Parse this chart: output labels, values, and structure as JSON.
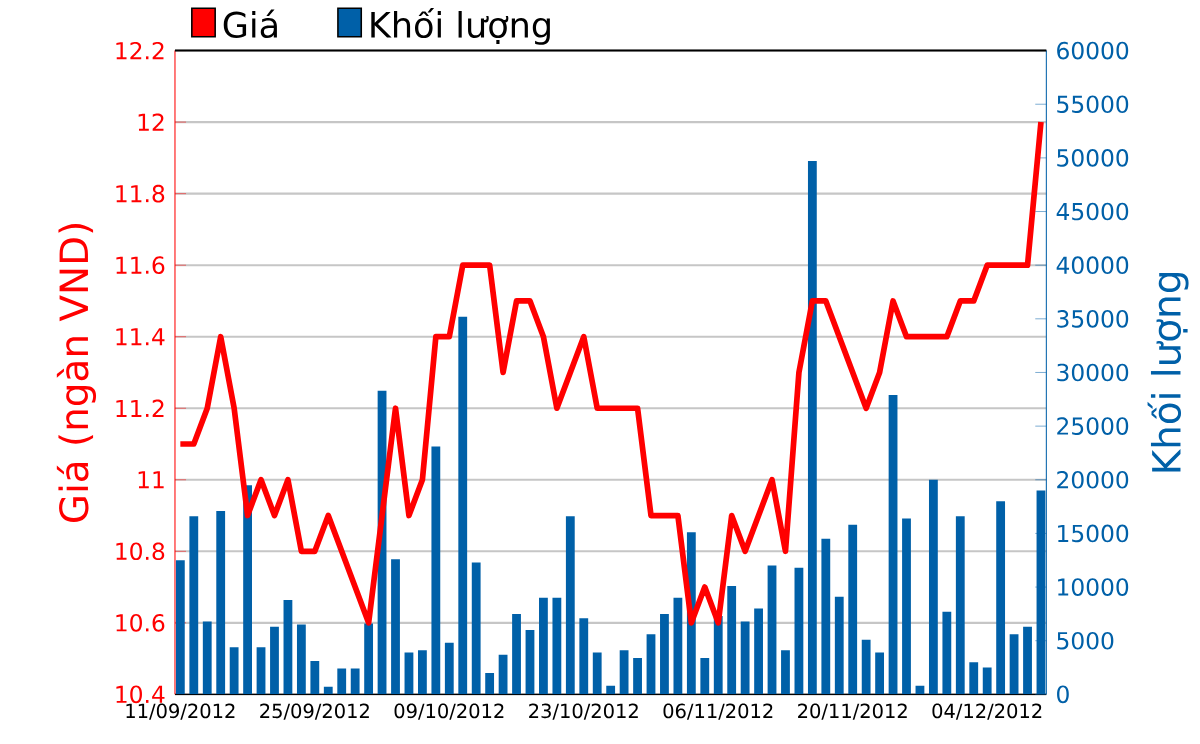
{
  "chart_data": {
    "type": "bar",
    "categories": [
      "11/09/2012",
      null,
      null,
      null,
      null,
      null,
      null,
      null,
      null,
      null,
      "25/09/2012",
      null,
      null,
      null,
      null,
      null,
      null,
      null,
      null,
      null,
      "09/10/2012",
      null,
      null,
      null,
      null,
      null,
      null,
      null,
      null,
      null,
      "23/10/2012",
      null,
      null,
      null,
      null,
      null,
      null,
      null,
      null,
      null,
      "06/11/2012",
      null,
      null,
      null,
      null,
      null,
      null,
      null,
      null,
      null,
      "20/11/2012",
      null,
      null,
      null,
      null,
      null,
      null,
      null,
      null,
      null,
      "04/12/2012",
      null,
      null,
      null,
      null
    ],
    "ylabel": "Giá (ngàn VND)",
    "y2label": "Khối lượng",
    "ylim": [
      10.4,
      12.2
    ],
    "yticks": [
      10.4,
      10.6,
      10.8,
      11,
      11.2,
      11.4,
      11.6,
      11.8,
      12,
      12.2
    ],
    "y2lim": [
      0,
      60000
    ],
    "y2ticks": [
      0,
      5000,
      10000,
      15000,
      20000,
      25000,
      30000,
      35000,
      40000,
      45000,
      50000,
      55000,
      60000
    ],
    "grid": "y",
    "legend": "top left",
    "series": [
      {
        "name": "Khối lượng",
        "axis": "y2",
        "color": "#0060a8",
        "values": [
          12500,
          16600,
          6800,
          17100,
          4400,
          19500,
          4400,
          6300,
          8800,
          6500,
          3100,
          700,
          2400,
          2400,
          6600,
          28300,
          12600,
          3900,
          4100,
          23100,
          4800,
          35200,
          12300,
          2000,
          3700,
          7500,
          6000,
          9000,
          9000,
          16600,
          7100,
          3900,
          800,
          4100,
          3400,
          5600,
          7500,
          9000,
          15100,
          3400,
          7300,
          10100,
          6800,
          8000,
          12000,
          4100,
          11800,
          49700,
          14500,
          9100,
          15800,
          5100,
          3900,
          27900,
          16400,
          800,
          20000,
          7700,
          16600,
          3000,
          2500,
          18000,
          5600,
          6300,
          19000
        ]
      },
      {
        "name": "Giá",
        "type": "line",
        "color": "#ff0000",
        "values": [
          11.1,
          11.1,
          11.2,
          11.4,
          11.2,
          10.9,
          11.0,
          10.9,
          11.0,
          10.8,
          10.8,
          10.9,
          10.8,
          10.7,
          10.6,
          10.9,
          11.2,
          10.9,
          11.0,
          11.4,
          11.4,
          11.6,
          11.6,
          11.6,
          11.3,
          11.5,
          11.5,
          11.4,
          11.2,
          11.3,
          11.4,
          11.2,
          11.2,
          11.2,
          11.2,
          10.9,
          10.9,
          10.9,
          10.6,
          10.7,
          10.6,
          10.9,
          10.8,
          10.9,
          11.0,
          10.8,
          11.3,
          11.5,
          11.5,
          11.4,
          11.3,
          11.2,
          11.3,
          11.5,
          11.4,
          11.4,
          11.4,
          11.4,
          11.5,
          11.5,
          11.6,
          11.6,
          11.6,
          11.6,
          12.0
        ]
      }
    ]
  }
}
